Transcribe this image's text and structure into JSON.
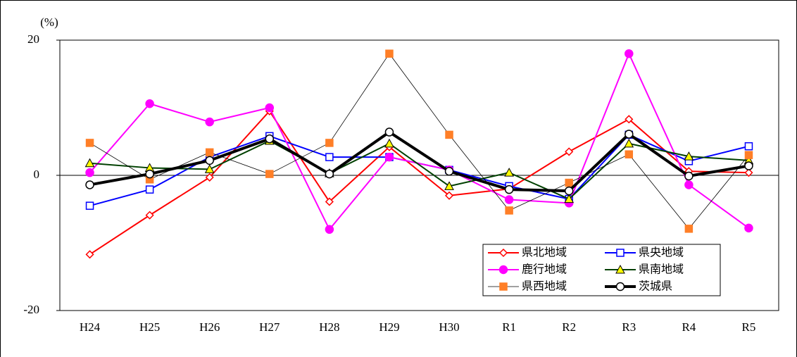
{
  "chart_data": {
    "type": "line",
    "y_unit_label": "(%)",
    "categories": [
      "H24",
      "H25",
      "H26",
      "H27",
      "H28",
      "H29",
      "H30",
      "R1",
      "R2",
      "R3",
      "R4",
      "R5"
    ],
    "ylim": [
      -20,
      20
    ],
    "yticks": [
      -20,
      0,
      20
    ],
    "legend": "lower-right",
    "series": [
      {
        "name": "県北地域",
        "color": "#ff0000",
        "marker": "diamond",
        "marker_fill": "#ffffff",
        "line_width": 2,
        "values": [
          -11.7,
          -5.9,
          -0.3,
          9.5,
          -3.9,
          4.2,
          -3.0,
          -2.0,
          3.5,
          8.3,
          0.6,
          0.4
        ]
      },
      {
        "name": "県央地域",
        "color": "#0000ff",
        "marker": "square",
        "marker_fill": "#ffffff",
        "line_width": 2,
        "values": [
          -4.5,
          -2.1,
          2.7,
          5.8,
          2.7,
          2.7,
          0.8,
          -1.6,
          -3.5,
          6.0,
          2.1,
          4.3
        ]
      },
      {
        "name": "鹿行地域",
        "color": "#ff00ff",
        "marker": "circle",
        "marker_fill": "#ff00ff",
        "line_width": 2,
        "values": [
          0.4,
          10.6,
          7.9,
          10.0,
          -8.0,
          2.7,
          0.8,
          -3.6,
          -4.1,
          18.0,
          -1.4,
          -7.8
        ]
      },
      {
        "name": "県南地域",
        "color": "#004000",
        "marker": "triangle",
        "marker_fill": "#ffff00",
        "line_width": 2,
        "values": [
          1.8,
          1.1,
          0.9,
          5.1,
          0.3,
          4.7,
          -1.6,
          0.4,
          -3.5,
          4.7,
          2.8,
          2.2
        ]
      },
      {
        "name": "県西地域",
        "color": "#000000",
        "marker": "square",
        "marker_fill": "#ff7f27",
        "marker_stroke": "#ff7f27",
        "line_width": 0.8,
        "values": [
          4.8,
          -0.6,
          3.4,
          0.2,
          4.8,
          18.0,
          6.0,
          -5.2,
          -1.1,
          3.1,
          -7.9,
          3.0
        ]
      },
      {
        "name": "茨城県",
        "color": "#000000",
        "marker": "circle",
        "marker_fill": "#ffffff",
        "line_width": 4,
        "values": [
          -1.4,
          0.2,
          2.2,
          5.4,
          0.2,
          6.4,
          0.6,
          -2.1,
          -2.3,
          6.1,
          -0.1,
          1.4
        ]
      }
    ]
  }
}
